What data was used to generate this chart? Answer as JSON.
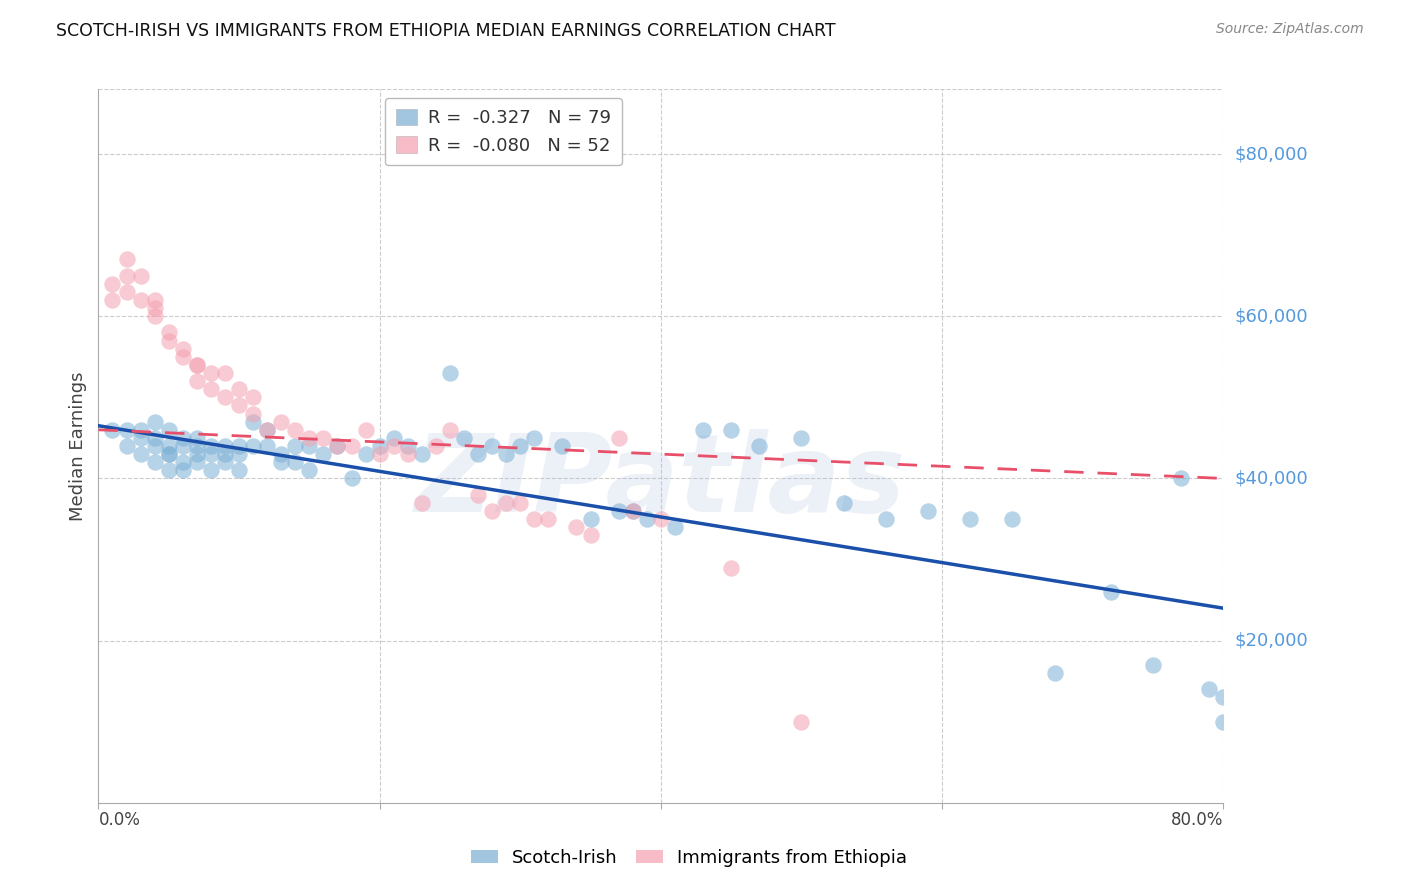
{
  "title": "SCOTCH-IRISH VS IMMIGRANTS FROM ETHIOPIA MEDIAN EARNINGS CORRELATION CHART",
  "source": "Source: ZipAtlas.com",
  "ylabel": "Median Earnings",
  "y_ticks": [
    20000,
    40000,
    60000,
    80000
  ],
  "y_tick_labels": [
    "$20,000",
    "$40,000",
    "$60,000",
    "$80,000"
  ],
  "y_min": 0,
  "y_max": 88000,
  "x_min": 0.0,
  "x_max": 0.8,
  "blue_R": -0.327,
  "blue_N": 79,
  "pink_R": -0.08,
  "pink_N": 52,
  "blue_color": "#7BAFD4",
  "pink_color": "#F4A0B0",
  "blue_line_color": "#1A4FAA",
  "pink_line_color": "#E8506A",
  "blue_label": "Scotch-Irish",
  "pink_label": "Immigrants from Ethiopia",
  "watermark": "ZIPatlas",
  "blue_scatter_x": [
    0.01,
    0.02,
    0.02,
    0.03,
    0.03,
    0.03,
    0.04,
    0.04,
    0.04,
    0.04,
    0.05,
    0.05,
    0.05,
    0.05,
    0.05,
    0.06,
    0.06,
    0.06,
    0.06,
    0.07,
    0.07,
    0.07,
    0.07,
    0.08,
    0.08,
    0.08,
    0.09,
    0.09,
    0.09,
    0.1,
    0.1,
    0.1,
    0.11,
    0.11,
    0.12,
    0.12,
    0.13,
    0.13,
    0.14,
    0.14,
    0.15,
    0.15,
    0.16,
    0.17,
    0.18,
    0.19,
    0.2,
    0.21,
    0.22,
    0.23,
    0.25,
    0.26,
    0.27,
    0.28,
    0.29,
    0.3,
    0.31,
    0.33,
    0.35,
    0.37,
    0.38,
    0.39,
    0.41,
    0.43,
    0.45,
    0.47,
    0.5,
    0.53,
    0.56,
    0.59,
    0.62,
    0.65,
    0.68,
    0.72,
    0.75,
    0.77,
    0.79,
    0.8,
    0.8
  ],
  "blue_scatter_y": [
    46000,
    44000,
    46000,
    45000,
    43000,
    46000,
    44000,
    42000,
    45000,
    47000,
    43000,
    41000,
    44000,
    46000,
    43000,
    42000,
    44000,
    41000,
    45000,
    43000,
    44000,
    42000,
    45000,
    44000,
    41000,
    43000,
    42000,
    44000,
    43000,
    41000,
    43000,
    44000,
    47000,
    44000,
    44000,
    46000,
    43000,
    42000,
    42000,
    44000,
    44000,
    41000,
    43000,
    44000,
    40000,
    43000,
    44000,
    45000,
    44000,
    43000,
    53000,
    45000,
    43000,
    44000,
    43000,
    44000,
    45000,
    44000,
    35000,
    36000,
    36000,
    35000,
    34000,
    46000,
    46000,
    44000,
    45000,
    37000,
    35000,
    36000,
    35000,
    35000,
    16000,
    26000,
    17000,
    40000,
    14000,
    13000,
    10000
  ],
  "pink_scatter_x": [
    0.01,
    0.01,
    0.02,
    0.02,
    0.02,
    0.03,
    0.03,
    0.04,
    0.04,
    0.04,
    0.05,
    0.05,
    0.06,
    0.06,
    0.07,
    0.07,
    0.07,
    0.08,
    0.08,
    0.09,
    0.09,
    0.1,
    0.1,
    0.11,
    0.11,
    0.12,
    0.13,
    0.14,
    0.15,
    0.16,
    0.17,
    0.18,
    0.19,
    0.2,
    0.21,
    0.22,
    0.23,
    0.24,
    0.25,
    0.27,
    0.28,
    0.29,
    0.3,
    0.31,
    0.32,
    0.34,
    0.35,
    0.37,
    0.38,
    0.4,
    0.45,
    0.5
  ],
  "pink_scatter_y": [
    64000,
    62000,
    67000,
    63000,
    65000,
    65000,
    62000,
    61000,
    60000,
    62000,
    58000,
    57000,
    56000,
    55000,
    54000,
    52000,
    54000,
    51000,
    53000,
    50000,
    53000,
    49000,
    51000,
    48000,
    50000,
    46000,
    47000,
    46000,
    45000,
    45000,
    44000,
    44000,
    46000,
    43000,
    44000,
    43000,
    37000,
    44000,
    46000,
    38000,
    36000,
    37000,
    37000,
    35000,
    35000,
    34000,
    33000,
    45000,
    36000,
    35000,
    29000,
    10000
  ],
  "blue_trend_x0": 0.0,
  "blue_trend_y0": 46500,
  "blue_trend_x1": 0.8,
  "blue_trend_y1": 24000,
  "pink_trend_x0": 0.0,
  "pink_trend_y0": 46000,
  "pink_trend_x1": 0.8,
  "pink_trend_y1": 40000
}
